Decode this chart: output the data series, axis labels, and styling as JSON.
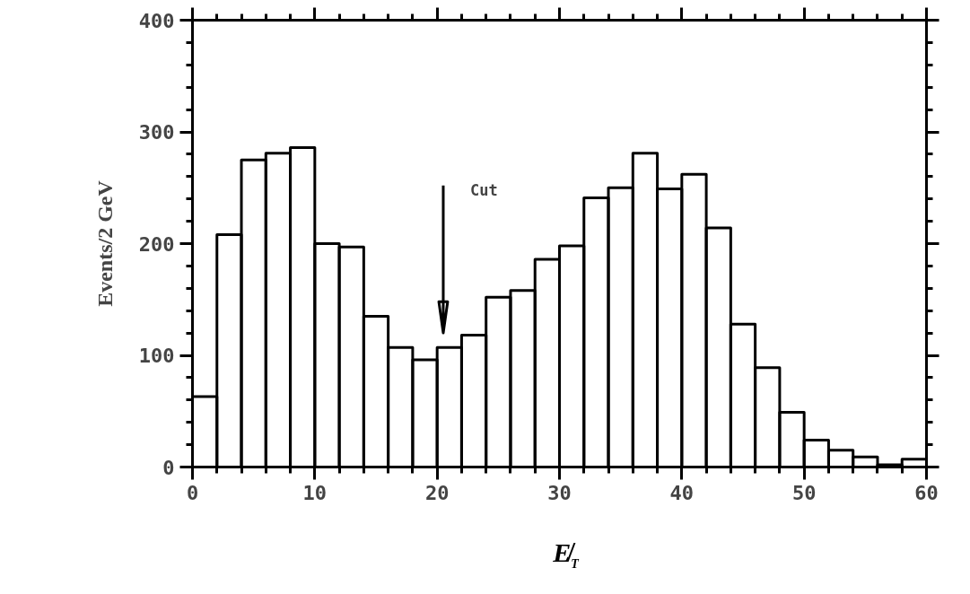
{
  "chart_data": {
    "type": "histogram",
    "xlabel": "E̸$_{T}$",
    "ylabel": "Events/2 GeV",
    "bins": [
      0,
      2,
      4,
      6,
      8,
      10,
      12,
      14,
      16,
      18,
      20,
      22,
      24,
      26,
      28,
      30,
      32,
      34,
      36,
      38,
      40,
      42,
      44,
      46,
      48,
      50,
      52,
      54,
      56,
      58,
      60
    ],
    "values": [
      63,
      208,
      275,
      281,
      286,
      200,
      197,
      135,
      107,
      96,
      107,
      118,
      152,
      158,
      186,
      198,
      241,
      250,
      281,
      249,
      262,
      214,
      128,
      89,
      49,
      24,
      15,
      9,
      2,
      7
    ],
    "color": "#000000",
    "xlim": [
      0,
      60
    ],
    "xticks": [
      0,
      10,
      20,
      30,
      40,
      50,
      60
    ],
    "ylim": [
      0,
      400
    ],
    "yticks": [
      0,
      100,
      200,
      300,
      400
    ],
    "ref_lines": [
      {
        "axis": "x",
        "value": 20.5,
        "label": "Cut"
      }
    ],
    "grid": false
  }
}
